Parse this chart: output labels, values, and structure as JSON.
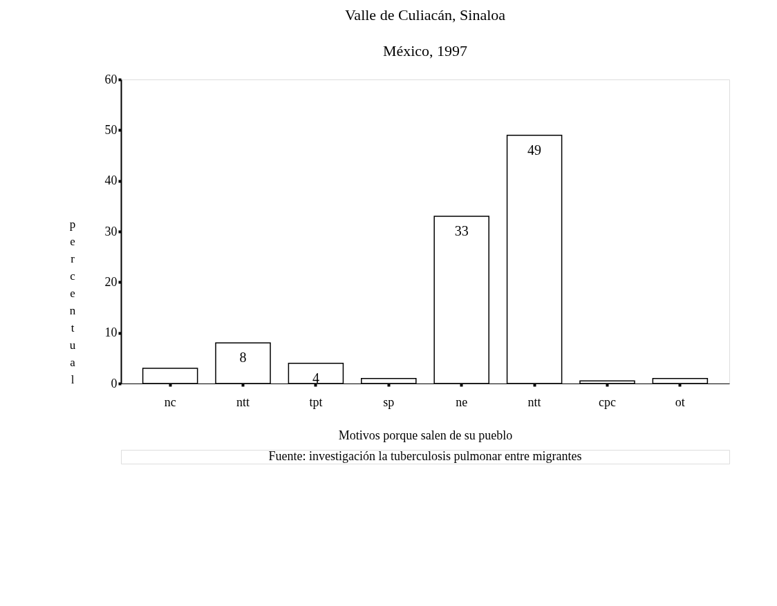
{
  "chart_data": {
    "type": "bar",
    "title": "Valle de Culiacán, Sinaloa",
    "subtitle": "México, 1997",
    "xlabel": "Motivos porque salen de su pueblo",
    "ylabel": "percentual",
    "categories": [
      "nc",
      "ntt",
      "tpt",
      "sp",
      "ne",
      "ntt",
      "cpc",
      "ot"
    ],
    "values": [
      3,
      8,
      4,
      1,
      33,
      49,
      0.5,
      1
    ],
    "value_labels": [
      null,
      "8",
      "4",
      null,
      "33",
      "49",
      null,
      null
    ],
    "color": "#ffffff",
    "ylim": [
      0,
      60
    ],
    "yticks": [
      0,
      10,
      20,
      30,
      40,
      50,
      60
    ],
    "grid": false,
    "annotations": [
      "Fuente: investigación la tuberculosis pulmonar entre migrantes"
    ]
  }
}
